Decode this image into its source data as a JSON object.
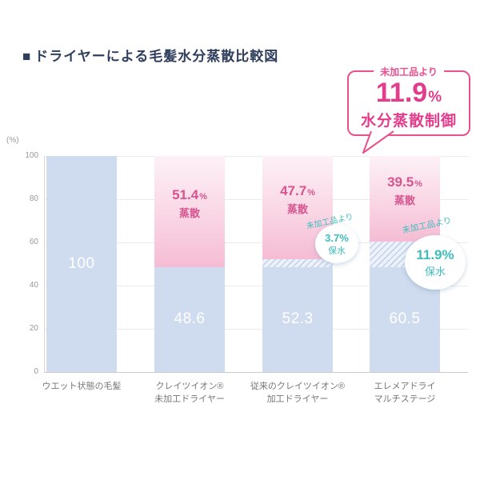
{
  "title": {
    "bullet": "■",
    "text": "ドライヤーによる毛髪水分蒸散比較図"
  },
  "callout": {
    "tag": "未加工品より",
    "value": "11.9",
    "percent": "%",
    "label": "水分蒸散制御"
  },
  "axis": {
    "unit": "(%)",
    "ticks": [
      "100",
      "80",
      "60",
      "40",
      "20",
      "0"
    ]
  },
  "colors": {
    "accent_pink": "#e9508e",
    "deep_pink_text": "#d6548f",
    "teal": "#3dbdbd",
    "bar_blue": "#cfdbee",
    "pink_gradient_top": "#fdf1f6",
    "pink_gradient_bottom": "#f5bcd4",
    "title_navy": "#2f3e5c",
    "axis_gray": "#999999"
  },
  "chart_data": {
    "type": "bar",
    "title": "ドライヤーによる毛髪水分蒸散比較図",
    "ylabel": "(%)",
    "ylim": [
      0,
      100
    ],
    "yticks": [
      100,
      80,
      60,
      40,
      20,
      0
    ],
    "grid": true,
    "percent_sign": "%",
    "bars": [
      {
        "category": "ウエット状態の毛髪",
        "category_lines": [
          "ウエット状態の毛髪"
        ],
        "retained_pct": 100,
        "base_pct": 100,
        "hatch_pct": 0,
        "evaporated_pct": 0,
        "value_label": "100"
      },
      {
        "category": "クレイツイオン®未加工ドライヤー",
        "category_lines": [
          "クレイツイオン®",
          "未加工ドライヤー"
        ],
        "retained_pct": 48.6,
        "base_pct": 48.6,
        "hatch_pct": 0,
        "evaporated_pct": 51.4,
        "value_label": "48.6",
        "evap_value": "51.4",
        "evap_word": "蒸散"
      },
      {
        "category": "従来のクレイツイオン®加工ドライヤー",
        "category_lines": [
          "従来のクレイツイオン®",
          "加工ドライヤー"
        ],
        "retained_pct": 52.3,
        "base_pct": 48.6,
        "hatch_pct": 3.7,
        "evaporated_pct": 47.7,
        "value_label": "52.3",
        "evap_value": "47.7",
        "evap_word": "蒸散",
        "annotation": {
          "lead": "未加工品より",
          "value": "3.7%",
          "word": "保水"
        }
      },
      {
        "category": "エレメアドライマルチステージ",
        "category_lines": [
          "エレメアドライ",
          "マルチステージ"
        ],
        "retained_pct": 60.5,
        "base_pct": 48.6,
        "hatch_pct": 11.9,
        "evaporated_pct": 39.5,
        "value_label": "60.5",
        "evap_value": "39.5",
        "evap_word": "蒸散",
        "annotation": {
          "lead": "未加工品より",
          "value": "11.9%",
          "word": "保水"
        }
      }
    ]
  }
}
